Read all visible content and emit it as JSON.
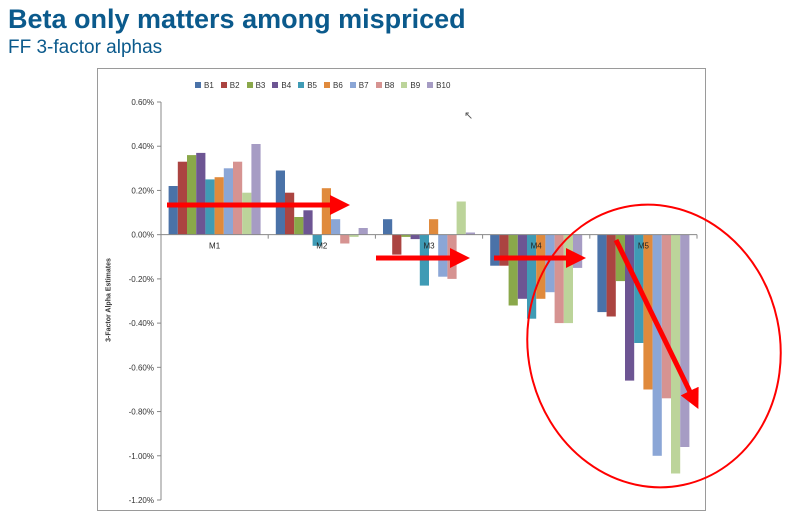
{
  "slide": {
    "title": "Beta only matters among mispriced",
    "subtitle": "FF 3-factor alphas"
  },
  "chart_data": {
    "type": "bar",
    "title": "",
    "xlabel": "",
    "ylabel": "3-Factor Alpha Estimates",
    "ylim": [
      -1.2,
      0.6
    ],
    "ytick_values": [
      0.6,
      0.4,
      0.2,
      0.0,
      -0.2,
      -0.4,
      -0.6,
      -0.8,
      -1.0,
      -1.2
    ],
    "ytick_labels": [
      "0.60%",
      "0.40%",
      "0.20%",
      "0.00%",
      "-0.20%",
      "-0.40%",
      "-0.60%",
      "-0.80%",
      "-1.00%",
      "-1.20%"
    ],
    "categories": [
      "M1",
      "M2",
      "M3",
      "M4",
      "M5"
    ],
    "legend_position": "top",
    "grid": false,
    "series": [
      {
        "name": "B1",
        "color": "#4a72a8",
        "values": [
          0.22,
          0.29,
          0.07,
          -0.14,
          -0.35
        ]
      },
      {
        "name": "B2",
        "color": "#ab4441",
        "values": [
          0.33,
          0.19,
          -0.09,
          -0.14,
          -0.37
        ]
      },
      {
        "name": "B3",
        "color": "#8aa84a",
        "values": [
          0.36,
          0.08,
          -0.01,
          -0.32,
          -0.21
        ]
      },
      {
        "name": "B4",
        "color": "#6d5593",
        "values": [
          0.37,
          0.11,
          -0.02,
          -0.29,
          -0.66
        ]
      },
      {
        "name": "B5",
        "color": "#3f9bb5",
        "values": [
          0.25,
          -0.05,
          -0.23,
          -0.38,
          -0.49
        ]
      },
      {
        "name": "B6",
        "color": "#e08a3c",
        "values": [
          0.26,
          0.21,
          0.07,
          -0.29,
          -0.7
        ]
      },
      {
        "name": "B7",
        "color": "#8ba6d6",
        "values": [
          0.3,
          0.07,
          -0.19,
          -0.26,
          -1.0
        ]
      },
      {
        "name": "B8",
        "color": "#d69391",
        "values": [
          0.33,
          -0.04,
          -0.2,
          -0.4,
          -0.74
        ]
      },
      {
        "name": "B9",
        "color": "#bcd49a",
        "values": [
          0.19,
          -0.01,
          0.15,
          -0.4,
          -1.08
        ]
      },
      {
        "name": "B10",
        "color": "#a69cc4",
        "values": [
          0.41,
          0.03,
          0.01,
          -0.15,
          -0.96
        ]
      }
    ]
  },
  "annotations": {
    "arrow_color": "#ff0000",
    "highlight_circle_color": "#ff0000"
  }
}
